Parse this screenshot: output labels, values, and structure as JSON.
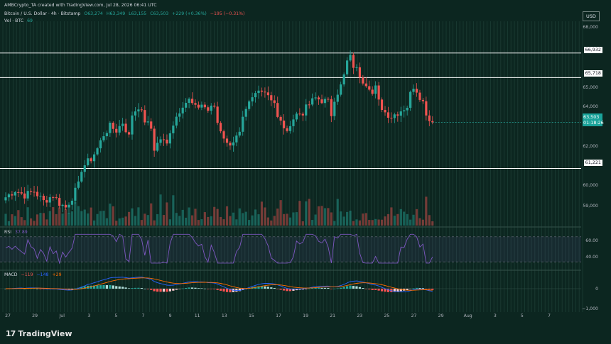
{
  "header": {
    "author": "AMBCrypto_TA created with TradingView.com, Jul 28, 2026 06:41 UTC",
    "symbol": "Bitcoin / U.S. Dollar · 4h · Bitstamp",
    "o": "O63,274",
    "h": "H63,349",
    "l": "L63,155",
    "c": "C63,503",
    "chg": "+229 (+0.36%)",
    "chg_neg": "−195 (−0.31%)",
    "vol_label": "Vol · BTC",
    "vol_value": "69"
  },
  "currency": "USD",
  "levels": [
    "66,932",
    "65,718",
    "61,221"
  ],
  "current": {
    "price": "63,503",
    "countdown": "01:18:26"
  },
  "y_ticks": [
    "68,000",
    "65,000",
    "64,000",
    "62,000",
    "60,000",
    "59,000"
  ],
  "rsi": {
    "label": "RSI",
    "value": "37.89",
    "ticks": [
      "60.00",
      "40.00"
    ]
  },
  "macd": {
    "label": "MACD",
    "v1": "−119",
    "v2": "−148",
    "v3": "+29",
    "ticks": [
      "0",
      "−1,000"
    ]
  },
  "x_ticks": [
    "27",
    "29",
    "Jul",
    "3",
    "5",
    "7",
    "9",
    "11",
    "13",
    "15",
    "17",
    "19",
    "21",
    "23",
    "25",
    "27",
    "29",
    "Aug",
    "3",
    "5",
    "7"
  ],
  "brand": "TradingView",
  "colors": {
    "bull": "#26a69a",
    "bear": "#ef5350",
    "rsi": "#7e57c2",
    "macd": "#2962ff",
    "signal": "#ff6d00"
  },
  "chart_data": {
    "type": "candlestick",
    "interval": "4h",
    "ylim": [
      58400,
      68500
    ],
    "horizontal_levels": [
      66932,
      65718,
      61221
    ],
    "close_path": [
      [
        0,
        59800
      ],
      [
        3,
        60150
      ],
      [
        6,
        59900
      ],
      [
        9,
        60100
      ],
      [
        12,
        59600
      ],
      [
        15,
        59900
      ],
      [
        17,
        59500
      ],
      [
        19,
        59300
      ],
      [
        21,
        59800
      ],
      [
        23,
        60400
      ],
      [
        24,
        61200
      ],
      [
        25,
        61400
      ],
      [
        27,
        61700
      ],
      [
        29,
        62200
      ],
      [
        31,
        62900
      ],
      [
        33,
        63300
      ],
      [
        35,
        63100
      ],
      [
        37,
        63500
      ],
      [
        39,
        62800
      ],
      [
        40,
        63900
      ],
      [
        42,
        64300
      ],
      [
        44,
        63600
      ],
      [
        46,
        63200
      ],
      [
        47,
        62200
      ],
      [
        49,
        62700
      ],
      [
        51,
        62400
      ],
      [
        52,
        63100
      ],
      [
        54,
        63800
      ],
      [
        56,
        64400
      ],
      [
        58,
        64600
      ],
      [
        60,
        64200
      ],
      [
        62,
        64400
      ],
      [
        64,
        64100
      ],
      [
        66,
        64300
      ],
      [
        67,
        63500
      ],
      [
        69,
        62800
      ],
      [
        70,
        62400
      ],
      [
        72,
        62600
      ],
      [
        74,
        62900
      ],
      [
        75,
        63600
      ],
      [
        77,
        64400
      ],
      [
        79,
        64900
      ],
      [
        81,
        65200
      ],
      [
        83,
        64900
      ],
      [
        85,
        64500
      ],
      [
        86,
        63700
      ],
      [
        88,
        63300
      ],
      [
        89,
        62900
      ],
      [
        90,
        63500
      ],
      [
        92,
        63900
      ],
      [
        94,
        64000
      ],
      [
        96,
        64400
      ],
      [
        98,
        64700
      ],
      [
        100,
        64600
      ],
      [
        102,
        64500
      ],
      [
        103,
        63900
      ],
      [
        104,
        64700
      ],
      [
        106,
        65300
      ],
      [
        107,
        65800
      ],
      [
        108,
        66500
      ],
      [
        109,
        66700
      ],
      [
        110,
        66300
      ],
      [
        111,
        66100
      ],
      [
        113,
        65600
      ],
      [
        115,
        65300
      ],
      [
        116,
        64900
      ],
      [
        117,
        65200
      ],
      [
        118,
        64500
      ],
      [
        120,
        64000
      ],
      [
        122,
        63800
      ],
      [
        124,
        64000
      ],
      [
        126,
        64200
      ],
      [
        127,
        64300
      ],
      [
        128,
        64900
      ],
      [
        129,
        65300
      ],
      [
        130,
        65100
      ],
      [
        131,
        64800
      ],
      [
        132,
        64500
      ],
      [
        133,
        64000
      ],
      [
        134,
        63600
      ],
      [
        135,
        63400
      ]
    ],
    "last_close": 63503,
    "indicators": {
      "rsi_value": 37.89,
      "rsi_ticks": [
        60,
        40
      ],
      "macd_values": [
        -119,
        -148,
        29
      ]
    }
  }
}
